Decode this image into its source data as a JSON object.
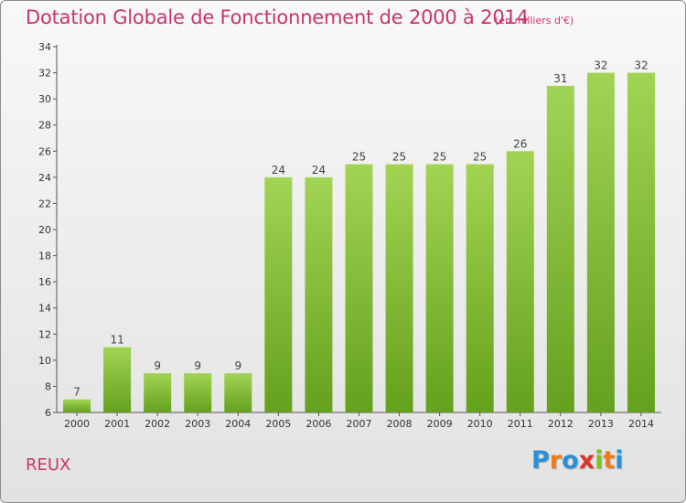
{
  "title": "Dotation Globale de Fonctionnement de 2000 à 2014",
  "subtitle": "(en milliers d'€)",
  "town": "REUX",
  "logo": {
    "letters": [
      "P",
      "r",
      "o",
      "x",
      "i",
      "t",
      "i"
    ],
    "colors": [
      "#2a8fd6",
      "#f07b1a",
      "#2a8fd6",
      "#e52f2f",
      "#7cbf2a",
      "#f07b1a",
      "#2a8fd6"
    ]
  },
  "colors": {
    "bar_light": "#a2d454",
    "bar_dark": "#64a11d",
    "title": "#c8356d"
  },
  "chart_data": {
    "type": "bar",
    "categories": [
      "2000",
      "2001",
      "2002",
      "2003",
      "2004",
      "2005",
      "2006",
      "2007",
      "2008",
      "2009",
      "2010",
      "2011",
      "2012",
      "2013",
      "2014"
    ],
    "values": [
      7,
      11,
      9,
      9,
      9,
      24,
      24,
      25,
      25,
      25,
      25,
      26,
      31,
      32,
      32
    ],
    "ylim": [
      6,
      34
    ],
    "yticks": [
      6,
      8,
      10,
      12,
      14,
      16,
      18,
      20,
      22,
      24,
      26,
      28,
      30,
      32,
      34
    ],
    "xlabel": "",
    "ylabel": "",
    "grid": false
  }
}
